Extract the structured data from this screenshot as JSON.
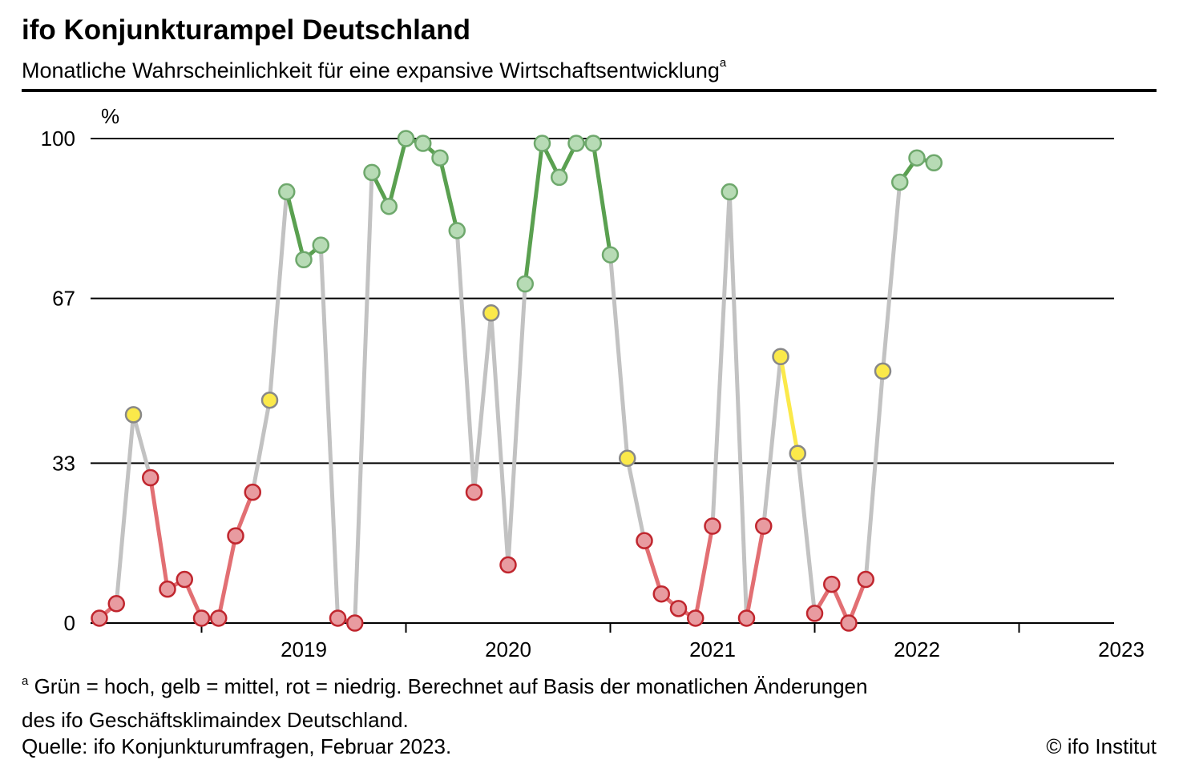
{
  "header": {
    "title": "ifo Konjunkturampel Deutschland",
    "subtitle": "Monatliche Wahrscheinlichkeit für eine expansive Wirtschaftsentwicklung",
    "subtitle_mark": "a"
  },
  "footer": {
    "footnote_mark": "a",
    "footnote_line1": "Grün = hoch, gelb = mittel, rot = niedrig. Berechnet auf Basis der monatlichen Änderungen",
    "footnote_line2": "des ifo Geschäftsklimaindex Deutschland.",
    "source": "Quelle: ifo Konjunkturumfragen, Februar 2023.",
    "copyright": "© ifo Institut"
  },
  "colors": {
    "high_fill": "#b7dbb5",
    "high_stroke": "#6ea86c",
    "high_line": "#5aa050",
    "mid_fill": "#fbe94a",
    "mid_stroke": "#888888",
    "mid_line": "#fbe94a",
    "low_fill": "#e89ba0",
    "low_stroke": "#c0262e",
    "low_line": "#e26f73",
    "neutral_line": "#c2c2c2"
  },
  "chart_data": {
    "type": "line",
    "title": "ifo Konjunkturampel Deutschland",
    "ylabel": "%",
    "ylim": [
      0,
      100
    ],
    "yticks": [
      "0",
      "33",
      "67",
      "100"
    ],
    "ytick_values": [
      0,
      33,
      67,
      100
    ],
    "xlabels": [
      "2019",
      "2020",
      "2021",
      "2022",
      "2023"
    ],
    "x_start": "2018-07",
    "grid": "horizontal",
    "legend": "none",
    "points": [
      {
        "x": "2018-07",
        "y": 1,
        "c": "low"
      },
      {
        "x": "2018-08",
        "y": 4,
        "c": "low"
      },
      {
        "x": "2018-09",
        "y": 43,
        "c": "mid"
      },
      {
        "x": "2018-10",
        "y": 30,
        "c": "low"
      },
      {
        "x": "2018-11",
        "y": 7,
        "c": "low"
      },
      {
        "x": "2018-12",
        "y": 9,
        "c": "low"
      },
      {
        "x": "2019-01",
        "y": 1,
        "c": "low"
      },
      {
        "x": "2019-02",
        "y": 1,
        "c": "low"
      },
      {
        "x": "2019-03",
        "y": 18,
        "c": "low"
      },
      {
        "x": "2019-04",
        "y": 27,
        "c": "low"
      },
      {
        "x": "2019-05",
        "y": 46,
        "c": "mid"
      },
      {
        "x": "2019-06",
        "y": 89,
        "c": "high"
      },
      {
        "x": "2019-07",
        "y": 75,
        "c": "high"
      },
      {
        "x": "2019-08",
        "y": 78,
        "c": "high"
      },
      {
        "x": "2019-09",
        "y": 1,
        "c": "low"
      },
      {
        "x": "2019-10",
        "y": 0,
        "c": "low"
      },
      {
        "x": "2019-11",
        "y": 93,
        "c": "high"
      },
      {
        "x": "2019-12",
        "y": 86,
        "c": "high"
      },
      {
        "x": "2020-01",
        "y": 100,
        "c": "high"
      },
      {
        "x": "2020-02",
        "y": 99,
        "c": "high"
      },
      {
        "x": "2020-03",
        "y": 96,
        "c": "high"
      },
      {
        "x": "2020-04",
        "y": 81,
        "c": "high"
      },
      {
        "x": "2020-05",
        "y": 27,
        "c": "low"
      },
      {
        "x": "2020-06",
        "y": 64,
        "c": "mid"
      },
      {
        "x": "2020-07",
        "y": 12,
        "c": "low"
      },
      {
        "x": "2020-08",
        "y": 70,
        "c": "high"
      },
      {
        "x": "2020-09",
        "y": 99,
        "c": "high"
      },
      {
        "x": "2020-10",
        "y": 92,
        "c": "high"
      },
      {
        "x": "2020-11",
        "y": 99,
        "c": "high"
      },
      {
        "x": "2020-12",
        "y": 99,
        "c": "high"
      },
      {
        "x": "2021-01",
        "y": 76,
        "c": "high"
      },
      {
        "x": "2021-02",
        "y": 34,
        "c": "mid"
      },
      {
        "x": "2021-03",
        "y": 17,
        "c": "low"
      },
      {
        "x": "2021-04",
        "y": 6,
        "c": "low"
      },
      {
        "x": "2021-05",
        "y": 3,
        "c": "low"
      },
      {
        "x": "2021-06",
        "y": 1,
        "c": "low"
      },
      {
        "x": "2021-07",
        "y": 20,
        "c": "low"
      },
      {
        "x": "2021-08",
        "y": 89,
        "c": "high"
      },
      {
        "x": "2021-09",
        "y": 1,
        "c": "low"
      },
      {
        "x": "2021-10",
        "y": 20,
        "c": "low"
      },
      {
        "x": "2021-11",
        "y": 55,
        "c": "mid"
      },
      {
        "x": "2021-12",
        "y": 35,
        "c": "mid"
      },
      {
        "x": "2022-01",
        "y": 2,
        "c": "low"
      },
      {
        "x": "2022-02",
        "y": 8,
        "c": "low"
      },
      {
        "x": "2022-03",
        "y": 0,
        "c": "low"
      },
      {
        "x": "2022-04",
        "y": 9,
        "c": "low"
      },
      {
        "x": "2022-05",
        "y": 52,
        "c": "mid"
      },
      {
        "x": "2022-06",
        "y": 91,
        "c": "high"
      },
      {
        "x": "2022-07",
        "y": 96,
        "c": "high"
      },
      {
        "x": "2022-08",
        "y": 95,
        "c": "high"
      }
    ]
  }
}
